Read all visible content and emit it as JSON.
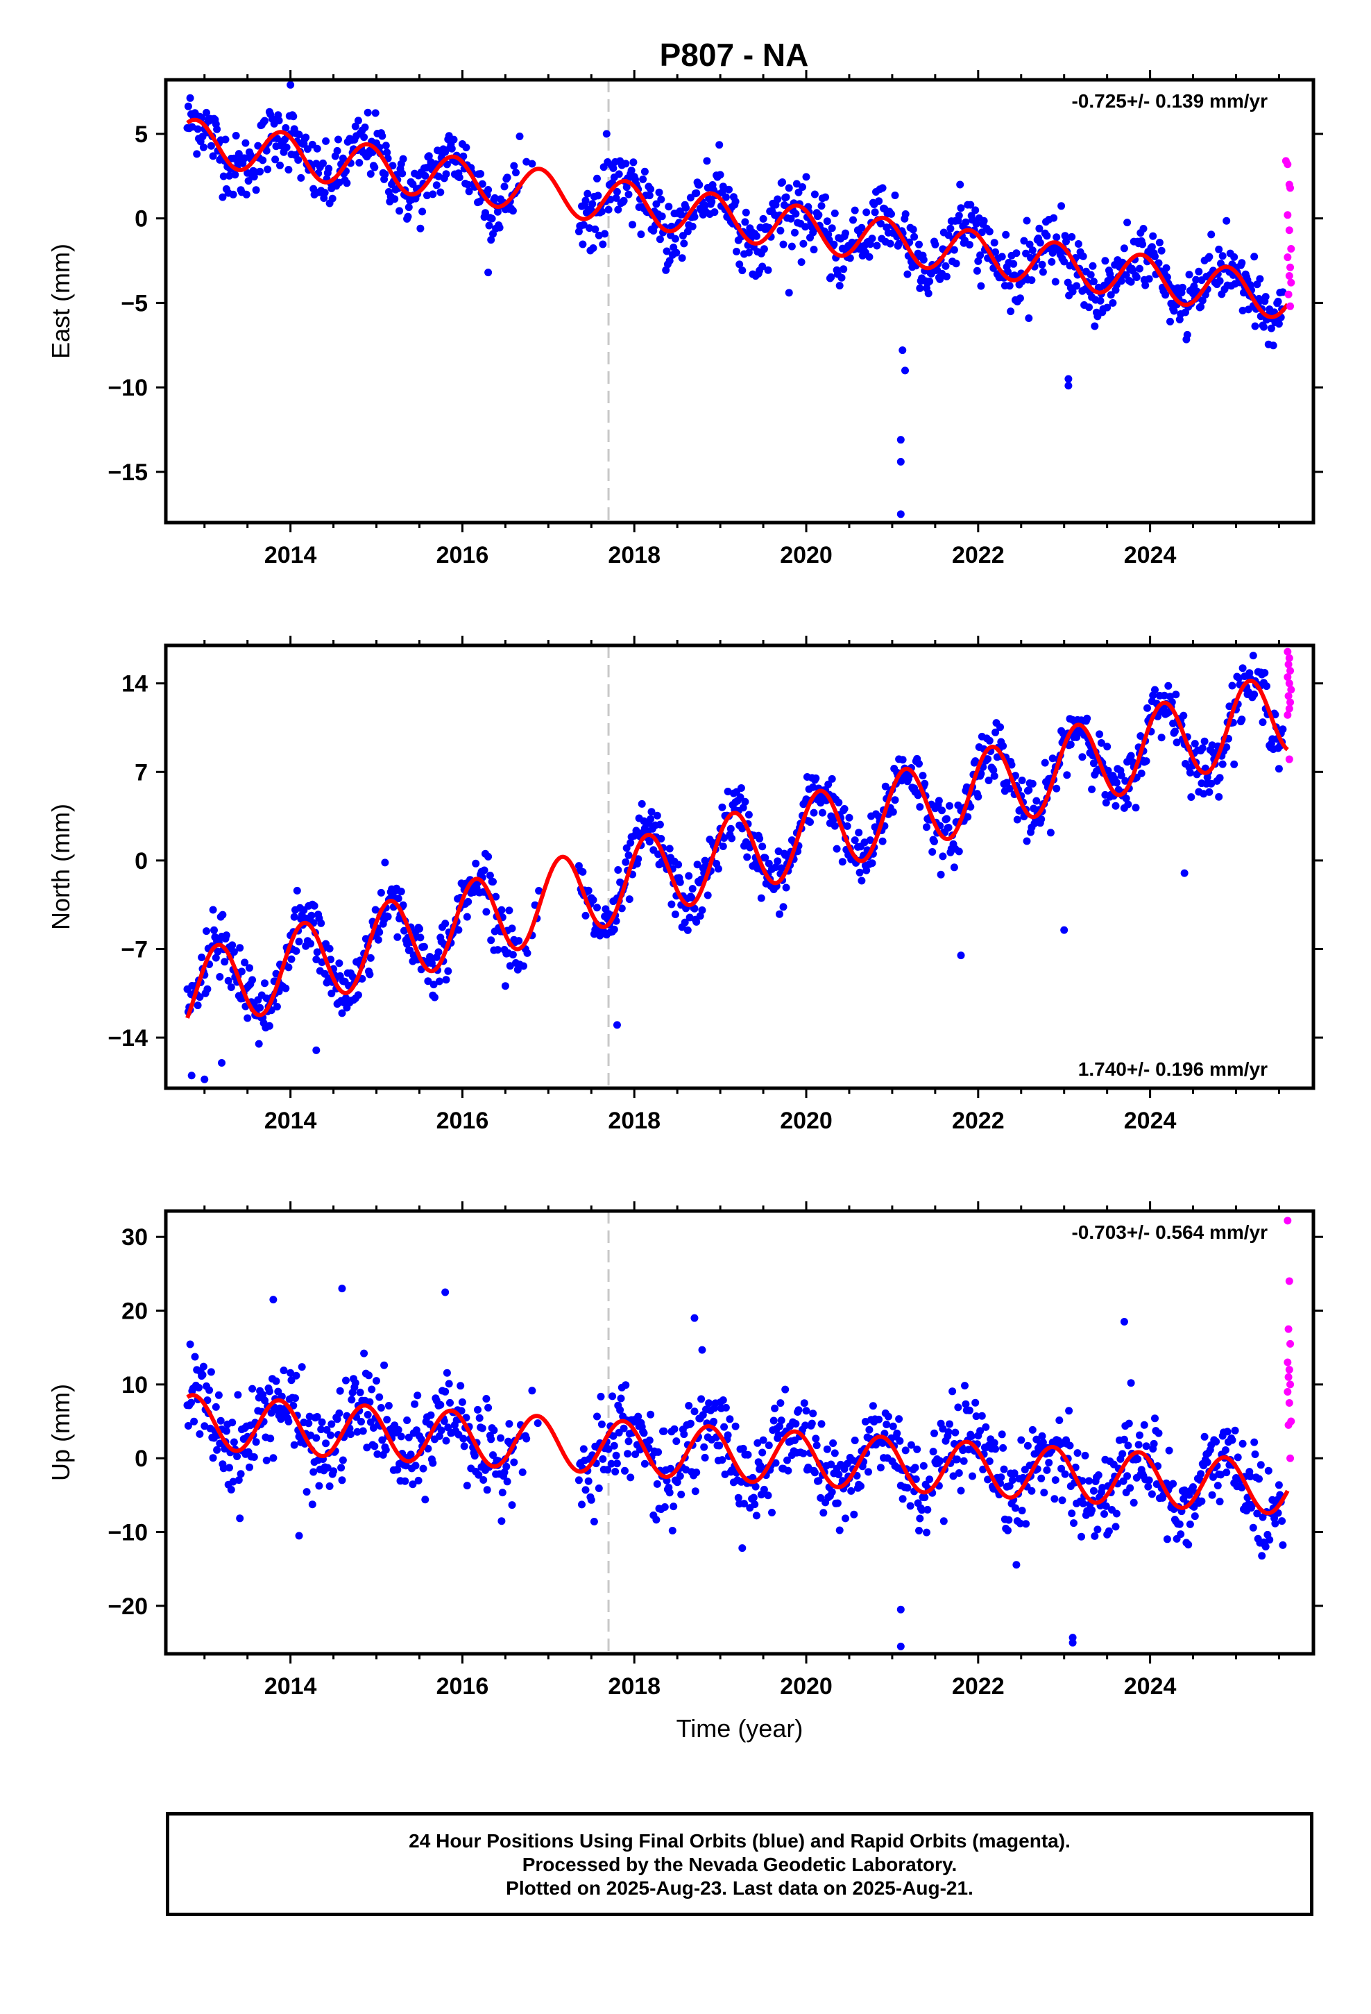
{
  "title": "P807 - NA",
  "colors": {
    "final": "#0000ff",
    "rapid": "#ff00ff",
    "fit": "#ff0000",
    "event_line": "#c8c8c8"
  },
  "caption": [
    "24 Hour Positions Using Final Orbits (blue) and Rapid Orbits (magenta).",
    "Processed by the Nevada Geodetic Laboratory.",
    "Plotted on 2025-Aug-23. Last data on 2025-Aug-21."
  ],
  "chart_data": [
    {
      "type": "scatter",
      "component": "East",
      "ylabel": "East (mm)",
      "xlabel": "",
      "rate": "-0.725+/- 0.139 mm/yr",
      "rate_position": "top-right",
      "xlim": [
        2012.55,
        2025.9
      ],
      "ylim": [
        -18,
        8.2
      ],
      "yticks": [
        5,
        0,
        -5,
        -10,
        -15
      ],
      "xticks": [
        2014,
        2016,
        2018,
        2020,
        2022,
        2024
      ],
      "event_line_x": 2017.7,
      "gap": [
        2016.9,
        2017.35
      ],
      "trend": {
        "intercept": 4.6,
        "slope": -0.725,
        "ref_year": 2012.8
      },
      "seasonal": {
        "amp": 1.3,
        "phase": 2.2
      },
      "scatter_sd": 1.3,
      "outliers": [
        [
          2021.1,
          -17.5
        ],
        [
          2021.1,
          -14.4
        ],
        [
          2021.1,
          -13.1
        ],
        [
          2021.15,
          -9.0
        ],
        [
          2021.12,
          -7.8
        ],
        [
          2023.05,
          -9.5
        ],
        [
          2023.05,
          -9.9
        ],
        [
          2014.0,
          7.9
        ],
        [
          2019.8,
          -4.4
        ],
        [
          2016.3,
          -3.2
        ]
      ],
      "rapid": [
        [
          2025.58,
          3.4
        ],
        [
          2025.6,
          3.2
        ],
        [
          2025.62,
          2.0
        ],
        [
          2025.63,
          1.8
        ],
        [
          2025.6,
          0.2
        ],
        [
          2025.62,
          -0.7
        ],
        [
          2025.64,
          -1.8
        ],
        [
          2025.6,
          -2.3
        ],
        [
          2025.63,
          -2.9
        ],
        [
          2025.62,
          -3.4
        ],
        [
          2025.64,
          -3.8
        ],
        [
          2025.61,
          -4.5
        ],
        [
          2025.63,
          -5.2
        ]
      ]
    },
    {
      "type": "scatter",
      "component": "North",
      "ylabel": "North (mm)",
      "xlabel": "",
      "rate": "1.740+/- 0.196 mm/yr",
      "rate_position": "bottom-right",
      "xlim": [
        2012.55,
        2025.9
      ],
      "ylim": [
        -18,
        17
      ],
      "yticks": [
        14,
        7,
        0,
        -7,
        -14
      ],
      "xticks": [
        2014,
        2016,
        2018,
        2020,
        2022,
        2024
      ],
      "event_line_x": 2017.7,
      "gap": [
        2016.9,
        2017.35
      ],
      "trend": {
        "intercept": -10.5,
        "slope": 1.74,
        "ref_year": 2012.8
      },
      "seasonal": {
        "amp": 3.2,
        "phase": 0.6
      },
      "scatter_sd": 1.6,
      "outliers": [
        [
          2012.85,
          -17.0
        ],
        [
          2013.0,
          -17.3
        ],
        [
          2013.2,
          -16.0
        ],
        [
          2014.3,
          -15.0
        ],
        [
          2017.8,
          -13.0
        ],
        [
          2024.4,
          -1.0
        ],
        [
          2023.0,
          -5.5
        ],
        [
          2021.8,
          -7.5
        ]
      ],
      "rapid": [
        [
          2025.6,
          16.5
        ],
        [
          2025.62,
          16.0
        ],
        [
          2025.61,
          15.5
        ],
        [
          2025.63,
          15.0
        ],
        [
          2025.6,
          14.5
        ],
        [
          2025.62,
          14.0
        ],
        [
          2025.64,
          13.5
        ],
        [
          2025.61,
          13.0
        ],
        [
          2025.63,
          12.5
        ],
        [
          2025.62,
          12.0
        ],
        [
          2025.6,
          11.5
        ],
        [
          2025.62,
          8.0
        ]
      ]
    },
    {
      "type": "scatter",
      "component": "Up",
      "ylabel": "Up (mm)",
      "xlabel": "Time (year)",
      "rate": "-0.703+/- 0.564 mm/yr",
      "rate_position": "top-right",
      "xlim": [
        2012.55,
        2025.9
      ],
      "ylim": [
        -26.5,
        33.5
      ],
      "yticks": [
        30,
        20,
        10,
        0,
        -10,
        -20
      ],
      "xticks": [
        2014,
        2016,
        2018,
        2020,
        2022,
        2024
      ],
      "event_line_x": 2017.7,
      "gap": [
        2016.9,
        2017.35
      ],
      "trend": {
        "intercept": 5.0,
        "slope": -0.703,
        "ref_year": 2012.8
      },
      "seasonal": {
        "amp": 3.6,
        "phase": 2.4
      },
      "scatter_sd": 4.2,
      "outliers": [
        [
          2021.1,
          -25.5
        ],
        [
          2023.1,
          -25.0
        ],
        [
          2023.1,
          -24.3
        ],
        [
          2014.6,
          23.0
        ],
        [
          2015.8,
          22.5
        ],
        [
          2013.8,
          21.5
        ],
        [
          2018.7,
          19.0
        ],
        [
          2023.7,
          18.5
        ],
        [
          2014.1,
          -10.5
        ],
        [
          2021.1,
          -20.5
        ]
      ],
      "rapid": [
        [
          2025.6,
          32.2
        ],
        [
          2025.62,
          24.0
        ],
        [
          2025.61,
          17.5
        ],
        [
          2025.63,
          15.5
        ],
        [
          2025.6,
          13.0
        ],
        [
          2025.62,
          12.0
        ],
        [
          2025.61,
          11.0
        ],
        [
          2025.63,
          10.0
        ],
        [
          2025.6,
          9.0
        ],
        [
          2025.62,
          7.5
        ],
        [
          2025.64,
          5.0
        ],
        [
          2025.61,
          4.5
        ],
        [
          2025.63,
          0.0
        ]
      ]
    }
  ]
}
